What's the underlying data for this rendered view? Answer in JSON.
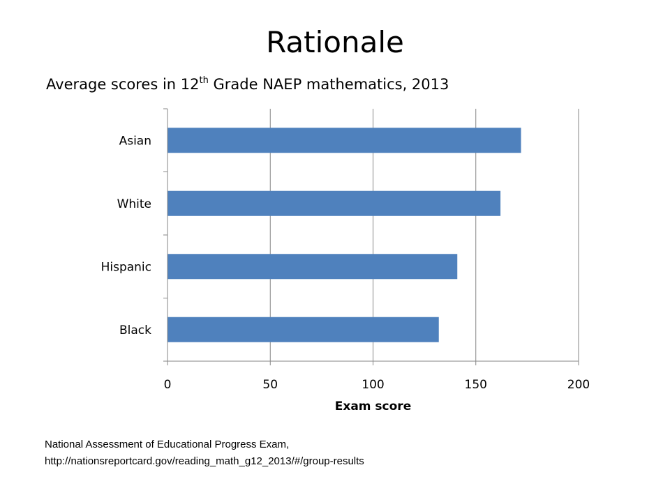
{
  "slide": {
    "title": "Rationale"
  },
  "chart_data": {
    "type": "bar",
    "orientation": "horizontal",
    "title_prefix": "Average scores in 12",
    "title_superscript": "th",
    "title_suffix": " Grade NAEP mathematics, 2013",
    "categories": [
      "Asian",
      "White",
      "Hispanic",
      "Black"
    ],
    "values": [
      172,
      162,
      141,
      132
    ],
    "xlabel": "Exam score",
    "ylabel": "",
    "xlim": [
      0,
      200
    ],
    "xticks": [
      0,
      50,
      100,
      150,
      200
    ],
    "grid": "vertical",
    "legend": "none",
    "bar_color": "#4F81BD"
  },
  "source": {
    "line1": "National Assessment of Educational Progress Exam,",
    "line2": "http://nationsreportcard.gov/reading_math_g12_2013/#/group-results"
  }
}
